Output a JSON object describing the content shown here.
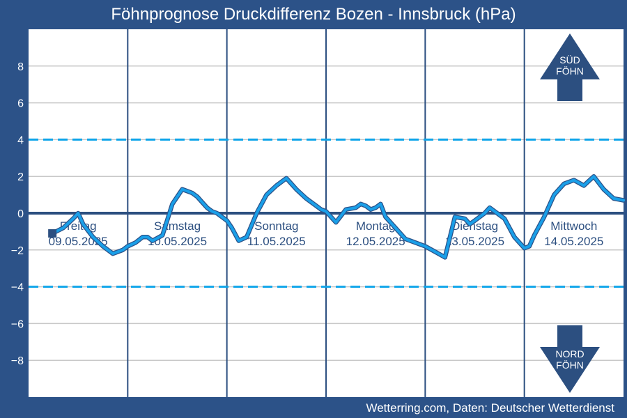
{
  "title": "Föhnprognose Druckdifferenz Bozen - Innsbruck (hPa)",
  "credit": "Wetterring.com, Daten: Deutscher Wetterdienst",
  "colors": {
    "background": "#2c5288",
    "plot_background": "#ffffff",
    "series": "#1a9fe8",
    "series_edge": "#2c5288",
    "threshold": "#0ea5ea",
    "zero_line": "#2c4f80",
    "day_divider": "#2c4f80",
    "grid": "#c8c8c8",
    "arrow": "#2c4f80"
  },
  "arrows": {
    "up": {
      "line1": "SÜD",
      "line2": "FÖHN"
    },
    "down": {
      "line1": "NORD",
      "line2": "FÖHN"
    }
  },
  "chart_data": {
    "type": "line",
    "title": "Föhnprognose Druckdifferenz Bozen - Innsbruck (hPa)",
    "xlabel": "",
    "ylabel": "",
    "ylim": [
      -10,
      10
    ],
    "yticks": [
      -8,
      -6,
      -4,
      -2,
      0,
      2,
      4,
      6,
      8
    ],
    "grid": true,
    "days": [
      {
        "name": "Freitag",
        "date": "09.05.2025"
      },
      {
        "name": "Samstag",
        "date": "10.05.2025"
      },
      {
        "name": "Sonntag",
        "date": "11.05.2025"
      },
      {
        "name": "Montag",
        "date": "12.05.2025"
      },
      {
        "name": "Dienstag",
        "date": "13.05.2025"
      },
      {
        "name": "Mittwoch",
        "date": "14.05.2025"
      }
    ],
    "thresholds": [
      4,
      -4
    ],
    "marker": {
      "x": 0.24,
      "y": -1.1
    },
    "series": [
      {
        "x": [
          0.24,
          0.35,
          0.45,
          0.5,
          0.55,
          0.65,
          0.75,
          0.85,
          0.95,
          1.0,
          1.08,
          1.15,
          1.2,
          1.25,
          1.35,
          1.45,
          1.55,
          1.6,
          1.65,
          1.7,
          1.75,
          1.8,
          1.85,
          1.9,
          2.0,
          2.05,
          2.12,
          2.2,
          2.3,
          2.4,
          2.5,
          2.6,
          2.7,
          2.8,
          2.9,
          2.95,
          3.0,
          3.1,
          3.2,
          3.3,
          3.35,
          3.4,
          3.45,
          3.5,
          3.55,
          3.6,
          3.7,
          3.8,
          3.85,
          3.9,
          4.0,
          4.1,
          4.2,
          4.3,
          4.4,
          4.45,
          4.5,
          4.55,
          4.6,
          4.65,
          4.7,
          4.8,
          4.9,
          5.0,
          5.05,
          5.1,
          5.2,
          5.3,
          5.4,
          5.5,
          5.6,
          5.7,
          5.8,
          5.9,
          6.0
        ],
        "y": [
          -1.1,
          -0.8,
          -0.3,
          0.0,
          -0.6,
          -1.3,
          -1.8,
          -2.2,
          -2.0,
          -1.8,
          -1.6,
          -1.3,
          -1.3,
          -1.5,
          -1.2,
          0.5,
          1.3,
          1.2,
          1.1,
          0.9,
          0.6,
          0.3,
          0.1,
          0.0,
          -0.4,
          -0.8,
          -1.5,
          -1.3,
          0.0,
          1.0,
          1.5,
          1.9,
          1.3,
          0.8,
          0.4,
          0.2,
          0.1,
          -0.5,
          0.2,
          0.3,
          0.5,
          0.4,
          0.2,
          0.3,
          0.5,
          -0.2,
          -0.8,
          -1.4,
          -1.5,
          -1.6,
          -1.8,
          -2.1,
          -2.4,
          -0.2,
          -0.3,
          -0.6,
          -0.4,
          -0.2,
          0.0,
          0.3,
          0.1,
          -0.3,
          -1.3,
          -1.9,
          -1.8,
          -1.2,
          -0.2,
          1.0,
          1.6,
          1.8,
          1.5,
          2.0,
          1.3,
          0.8,
          0.7
        ]
      }
    ]
  }
}
